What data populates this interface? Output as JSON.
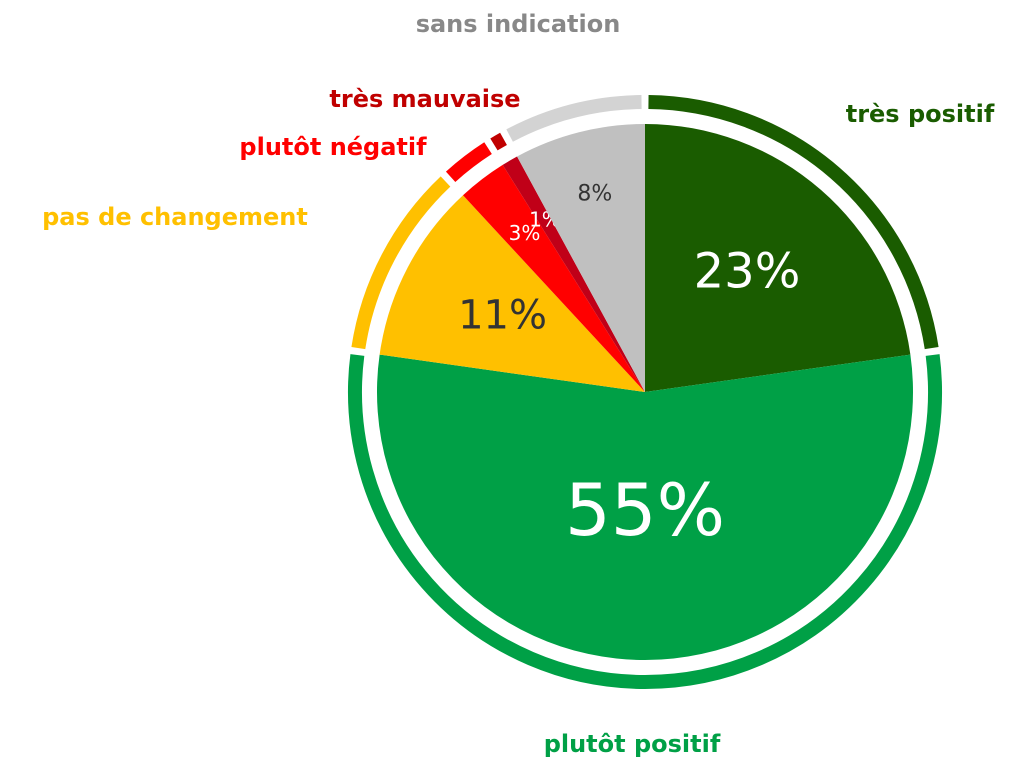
{
  "chart_data": {
    "type": "pie",
    "categories": [
      "très positif",
      "plutôt positif",
      "pas de changement",
      "plutôt négatif",
      "très mauvaise",
      "sans indication"
    ],
    "values": [
      23,
      55,
      11,
      3,
      1,
      8
    ],
    "value_labels": [
      "23%",
      "55%",
      "11%",
      "3%",
      "1%",
      "8%"
    ],
    "colors": [
      "#1a5c00",
      "#00a046",
      "#ffc000",
      "#ff0000",
      "#c00018",
      "#c0c0c0"
    ],
    "ring_colors": [
      "#1a5c00",
      "#00a046",
      "#ffc000",
      "#ff0000",
      "#c00000",
      "#d3d3d3"
    ],
    "label_colors": [
      "#1a5c00",
      "#00a046",
      "#ffc000",
      "#ff0000",
      "#c00000",
      "#888888"
    ]
  }
}
